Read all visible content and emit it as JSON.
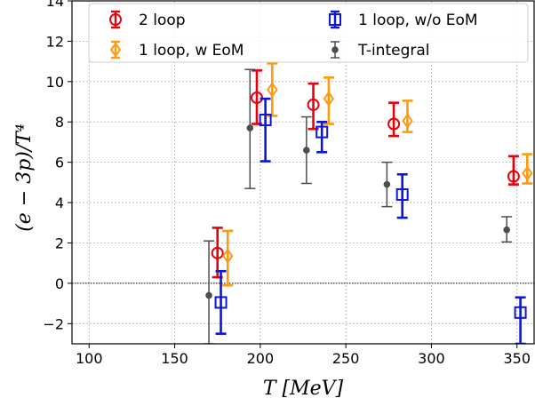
{
  "chart_data": {
    "type": "scatter",
    "title": "",
    "xlabel": "T [MeV]",
    "ylabel": "(e − 3p)/T⁴",
    "xlim": [
      90,
      360
    ],
    "ylim": [
      -3,
      14
    ],
    "xticks": [
      "100",
      "150",
      "200",
      "250",
      "300",
      "350"
    ],
    "yticks": [
      "−2",
      "0",
      "2",
      "4",
      "6",
      "8",
      "10",
      "12",
      "14"
    ],
    "grid": true,
    "legend_position": "top",
    "reference_line_y": 0,
    "series": [
      {
        "name": "2 loop",
        "marker": "circle",
        "color": "#e8000b",
        "points": [
          {
            "x": 175,
            "y": 1.5,
            "ylo": 0.3,
            "yhi": 2.75
          },
          {
            "x": 198,
            "y": 9.2,
            "ylo": 7.9,
            "yhi": 10.55
          },
          {
            "x": 231,
            "y": 8.85,
            "ylo": 7.65,
            "yhi": 9.9
          },
          {
            "x": 278,
            "y": 7.9,
            "ylo": 7.3,
            "yhi": 8.95
          },
          {
            "x": 348,
            "y": 5.3,
            "ylo": 4.9,
            "yhi": 6.3
          }
        ]
      },
      {
        "name": "1 loop, w EoM",
        "marker": "diamond",
        "color": "#ff9a0f",
        "points": [
          {
            "x": 181,
            "y": 1.35,
            "ylo": -0.1,
            "yhi": 2.6
          },
          {
            "x": 207,
            "y": 9.6,
            "ylo": 8.3,
            "yhi": 10.9
          },
          {
            "x": 240,
            "y": 9.15,
            "ylo": 7.9,
            "yhi": 10.2
          },
          {
            "x": 286,
            "y": 8.05,
            "ylo": 7.5,
            "yhi": 9.05
          },
          {
            "x": 356,
            "y": 5.45,
            "ylo": 4.95,
            "yhi": 6.4
          }
        ]
      },
      {
        "name": "1 loop, w/o EoM",
        "marker": "square",
        "color": "#0a17d9",
        "points": [
          {
            "x": 177,
            "y": -0.95,
            "ylo": -2.5,
            "yhi": 0.6
          },
          {
            "x": 203,
            "y": 8.1,
            "ylo": 6.05,
            "yhi": 9.15
          },
          {
            "x": 236,
            "y": 7.5,
            "ylo": 6.5,
            "yhi": 8.0
          },
          {
            "x": 283,
            "y": 4.4,
            "ylo": 3.25,
            "yhi": 5.4
          },
          {
            "x": 352,
            "y": -1.45,
            "ylo": -3.0,
            "yhi": -0.7
          }
        ]
      },
      {
        "name": "T-integral",
        "marker": "dot",
        "color": "#4d4d4d",
        "points": [
          {
            "x": 170,
            "y": -0.6,
            "ylo": -3.0,
            "yhi": 2.1
          },
          {
            "x": 194,
            "y": 7.7,
            "ylo": 4.7,
            "yhi": 10.6
          },
          {
            "x": 227,
            "y": 6.6,
            "ylo": 4.95,
            "yhi": 8.25
          },
          {
            "x": 274,
            "y": 4.9,
            "ylo": 3.8,
            "yhi": 6.0
          },
          {
            "x": 344,
            "y": 2.65,
            "ylo": 2.05,
            "yhi": 3.3
          }
        ]
      }
    ]
  }
}
